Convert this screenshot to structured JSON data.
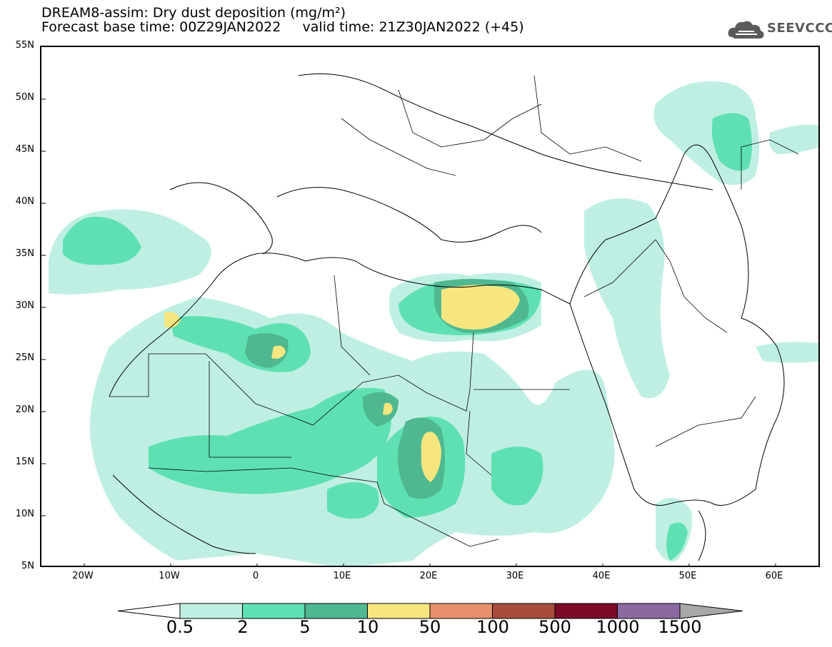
{
  "title": {
    "line1": "DREAM8-assim: Dry dust deposition (mg/m²)",
    "line2": "Forecast base time: 00Z29JAN2022     valid time: 21Z30JAN2022 (+45)"
  },
  "logo": {
    "text": "SEEVCCC",
    "icon": "cloud-icon"
  },
  "axes": {
    "lat_labels": [
      "55N",
      "50N",
      "45N",
      "40N",
      "35N",
      "30N",
      "25N",
      "20N",
      "15N",
      "10N",
      "5N"
    ],
    "lon_labels": [
      "20W",
      "10W",
      "0",
      "10E",
      "20E",
      "30E",
      "40E",
      "50E",
      "60E"
    ]
  },
  "colorbar": {
    "labels": [
      "0.5",
      "2",
      "5",
      "10",
      "50",
      "100",
      "500",
      "1000",
      "1500"
    ],
    "colors": [
      "#bfefe3",
      "#5fe0b3",
      "#4fb890",
      "#f5e680",
      "#e8906a",
      "#a84d3e",
      "#7a0a28",
      "#8a6aa0"
    ],
    "under_color": "#ffffff",
    "over_color": "#a8a8a8"
  }
}
